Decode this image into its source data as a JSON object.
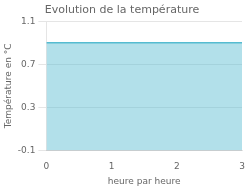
{
  "chart_data": {
    "type": "line",
    "title": "Evolution de la température",
    "xlabel": "heure par heure",
    "ylabel": "Température en °C",
    "x": [
      0,
      3
    ],
    "values": [
      0.9,
      0.9
    ],
    "color": "#55bbd0",
    "xlim": [
      0,
      3
    ],
    "ylim": [
      -0.1,
      1.1
    ],
    "xticks": [
      0,
      1,
      2,
      3
    ],
    "yticks": [
      -0.1,
      0.3,
      0.7,
      1.1
    ],
    "grid": "y"
  }
}
